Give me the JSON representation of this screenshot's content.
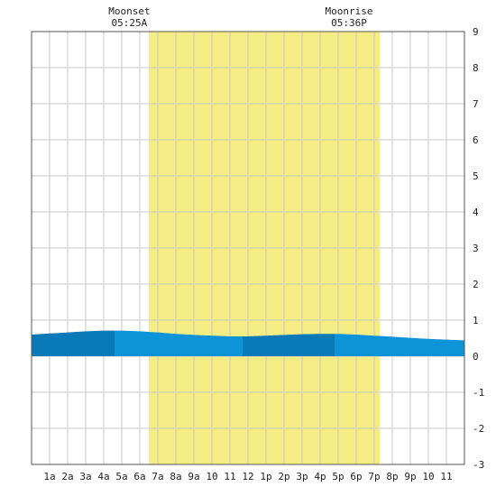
{
  "chart_data": {
    "type": "area",
    "x_unit": "hour",
    "x_range": [
      0,
      24
    ],
    "ylim": [
      -3,
      9
    ],
    "grid": true,
    "x_tick_labels": [
      "1a",
      "2a",
      "3a",
      "4a",
      "5a",
      "6a",
      "7a",
      "8a",
      "9a",
      "10",
      "11",
      "12",
      "1p",
      "2p",
      "3p",
      "4p",
      "5p",
      "6p",
      "7p",
      "8p",
      "9p",
      "10",
      "11"
    ],
    "x_tick_hours": [
      1,
      2,
      3,
      4,
      5,
      6,
      7,
      8,
      9,
      10,
      11,
      12,
      13,
      14,
      15,
      16,
      17,
      18,
      19,
      20,
      21,
      22,
      23
    ],
    "y_ticks": [
      -3,
      -2,
      -1,
      0,
      1,
      2,
      3,
      4,
      5,
      6,
      7,
      8,
      9
    ],
    "daylight_band": {
      "start_hour": 6.5,
      "end_hour": 19.3,
      "color": "#f5ec84"
    },
    "annotations": [
      {
        "label": "Moonset",
        "time": "05:25A",
        "hour": 5.42
      },
      {
        "label": "Moonrise",
        "time": "05:36P",
        "hour": 17.6
      }
    ],
    "series": [
      {
        "x": [
          0,
          1,
          2,
          3,
          4,
          5,
          6,
          7,
          8,
          9,
          10,
          11,
          12,
          13,
          14,
          15,
          16,
          17,
          18,
          19,
          20,
          21,
          22,
          23,
          24
        ],
        "y": [
          0.6,
          0.63,
          0.66,
          0.69,
          0.71,
          0.71,
          0.69,
          0.66,
          0.62,
          0.59,
          0.57,
          0.55,
          0.55,
          0.57,
          0.59,
          0.61,
          0.62,
          0.62,
          0.6,
          0.57,
          0.54,
          0.51,
          0.48,
          0.46,
          0.44
        ]
      }
    ],
    "shade_segments": [
      {
        "from": 0,
        "to": 4.6,
        "color": "#0a79b8"
      },
      {
        "from": 4.6,
        "to": 11.7,
        "color": "#0d93d8"
      },
      {
        "from": 11.7,
        "to": 16.8,
        "color": "#0a79b8"
      },
      {
        "from": 16.8,
        "to": 24,
        "color": "#0d93d8"
      }
    ]
  }
}
